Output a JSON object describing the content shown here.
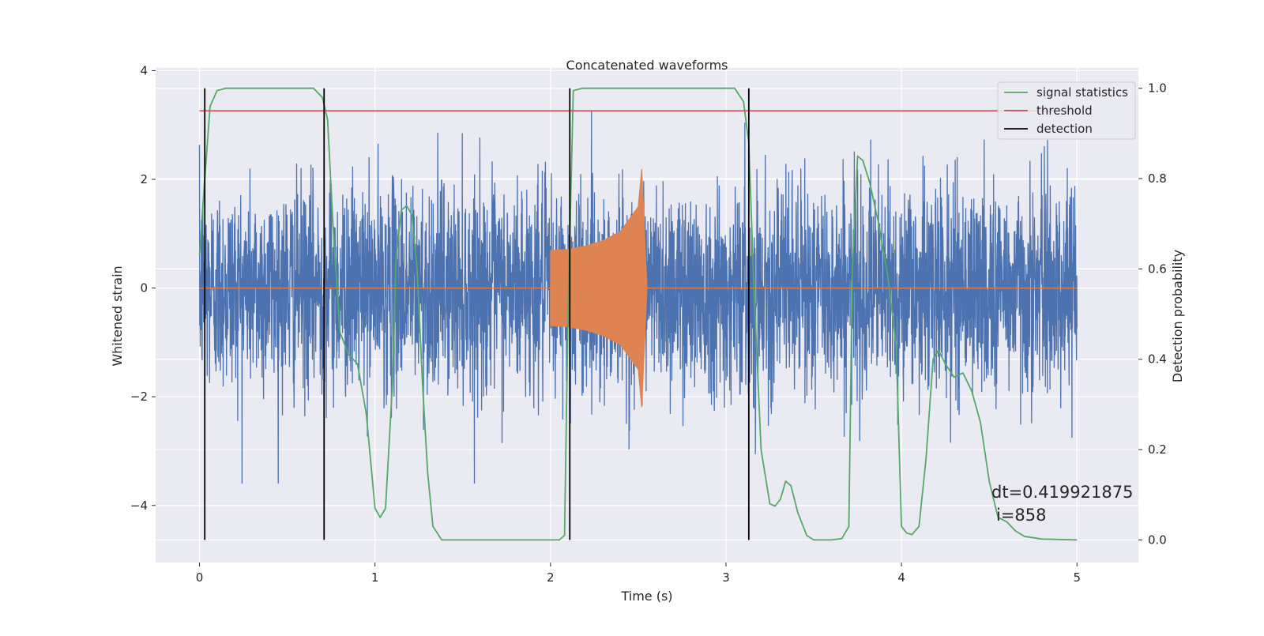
{
  "chart_data": {
    "type": "line",
    "title": "Concatenated waveforms",
    "xlabel": "Time (s)",
    "ylabel": "Whitened strain",
    "y2label": "Detection probability",
    "xlim": [
      -0.25,
      5.35
    ],
    "ylim": [
      -5.05,
      4.05
    ],
    "y2lim": [
      -0.05,
      1.045
    ],
    "x_ticks": [
      0,
      1,
      2,
      3,
      4,
      5
    ],
    "x_tick_labels": [
      "0",
      "1",
      "2",
      "3",
      "4",
      "5"
    ],
    "y_ticks": [
      -4,
      -2,
      0,
      2,
      4
    ],
    "y_tick_labels": [
      "−4",
      "−2",
      "0",
      "2",
      "4"
    ],
    "y2_ticks": [
      0.0,
      0.2,
      0.4,
      0.6,
      0.8,
      1.0
    ],
    "y2_tick_labels": [
      "0.0",
      "0.2",
      "0.4",
      "0.6",
      "0.8",
      "1.0"
    ],
    "grid": true,
    "legend_position": "top-right",
    "legend": [
      "signal statistics",
      "threshold",
      "detection"
    ],
    "colors": {
      "strain": "#4c72b0",
      "injection": "#dd8452",
      "signal_statistics": "#55a868",
      "threshold": "#c44e52",
      "detection": "#000000",
      "plot_bg": "#eaeaf2",
      "grid": "#ffffff"
    },
    "series": [
      {
        "name": "strain",
        "axis": "left",
        "description": "whitened noisy strain, approx amplitude ±1.2 with peaks near ±3.6",
        "x_range": [
          0,
          5
        ],
        "envelope": [
          -3.6,
          3.6
        ]
      },
      {
        "name": "injection",
        "axis": "left",
        "description": "injected chirp waveform",
        "x": [
          0,
          2.0,
          2.0,
          2.1,
          2.2,
          2.3,
          2.4,
          2.5,
          2.52,
          2.55,
          5.0
        ],
        "amplitude": [
          0,
          0,
          0.7,
          0.72,
          0.78,
          0.88,
          1.05,
          1.5,
          2.2,
          0,
          0
        ]
      },
      {
        "name": "signal statistics",
        "axis": "right",
        "x": [
          0.0,
          0.03,
          0.06,
          0.1,
          0.15,
          0.3,
          0.5,
          0.65,
          0.7,
          0.73,
          0.76,
          0.8,
          0.85,
          0.9,
          0.95,
          1.0,
          1.03,
          1.06,
          1.1,
          1.12,
          1.15,
          1.18,
          1.21,
          1.24,
          1.27,
          1.3,
          1.33,
          1.38,
          1.45,
          1.6,
          1.8,
          2.0,
          2.05,
          2.08,
          2.1,
          2.13,
          2.18,
          2.3,
          2.5,
          2.7,
          2.9,
          3.05,
          3.1,
          3.13,
          3.16,
          3.2,
          3.25,
          3.28,
          3.31,
          3.34,
          3.37,
          3.41,
          3.46,
          3.5,
          3.6,
          3.66,
          3.7,
          3.72,
          3.75,
          3.78,
          3.82,
          3.87,
          3.92,
          3.97,
          4.0,
          4.03,
          4.06,
          4.1,
          4.14,
          4.18,
          4.21,
          4.25,
          4.3,
          4.35,
          4.4,
          4.45,
          4.5,
          4.55,
          4.6,
          4.65,
          4.7,
          4.8,
          5.0
        ],
        "y": [
          0.63,
          0.8,
          0.96,
          0.995,
          1.0,
          1.0,
          1.0,
          1.0,
          0.98,
          0.93,
          0.7,
          0.46,
          0.41,
          0.39,
          0.28,
          0.07,
          0.05,
          0.07,
          0.35,
          0.62,
          0.73,
          0.74,
          0.72,
          0.6,
          0.35,
          0.15,
          0.03,
          0.0,
          0.0,
          0.0,
          0.0,
          0.0,
          0.0,
          0.01,
          0.5,
          0.995,
          1.0,
          1.0,
          1.0,
          1.0,
          1.0,
          1.0,
          0.97,
          0.88,
          0.55,
          0.2,
          0.08,
          0.075,
          0.09,
          0.13,
          0.12,
          0.06,
          0.01,
          0.0,
          0.0,
          0.003,
          0.03,
          0.6,
          0.85,
          0.84,
          0.79,
          0.7,
          0.59,
          0.43,
          0.03,
          0.015,
          0.012,
          0.03,
          0.18,
          0.4,
          0.42,
          0.39,
          0.36,
          0.37,
          0.33,
          0.26,
          0.13,
          0.05,
          0.04,
          0.02,
          0.008,
          0.002,
          0.0
        ]
      },
      {
        "name": "threshold",
        "axis": "right",
        "x": [
          0.0,
          5.0
        ],
        "y": [
          0.95,
          0.95
        ]
      },
      {
        "name": "detection",
        "axis": "right",
        "x": [
          0.03,
          0.71,
          2.11,
          3.13
        ],
        "y_range": [
          0.0,
          1.0
        ]
      }
    ],
    "annotations": [
      "dt=0.419921875",
      "i=858"
    ]
  }
}
